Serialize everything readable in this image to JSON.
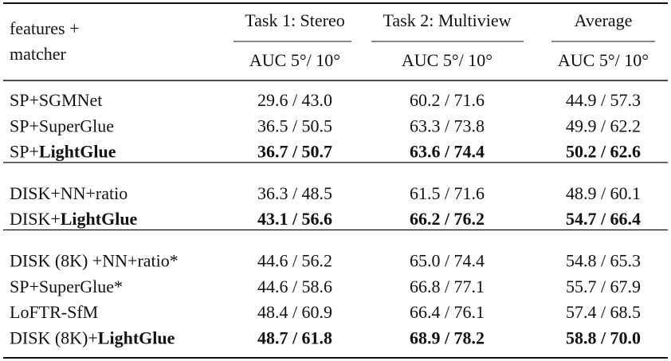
{
  "table": {
    "header": {
      "features": "features +",
      "matcher": "matcher",
      "groups": [
        "Task 1: Stereo",
        "Task 2: Multiview",
        "Average"
      ],
      "metrics": [
        "AUC 5°/ 10°",
        "AUC 5°/ 10°",
        "AUC 5°/ 10°"
      ]
    },
    "sections": [
      [
        {
          "method": [
            "SP+SGMNet"
          ],
          "cells": [
            "29.6 / 43.0",
            "60.2 / 71.6",
            "44.9 / 57.3"
          ]
        },
        {
          "method": [
            "SP+SuperGlue"
          ],
          "cells": [
            "36.5 / 50.5",
            "63.3 / 73.8",
            "49.9 / 62.2"
          ]
        },
        {
          "method": [
            "SP+",
            "LightGlue"
          ],
          "bold": true,
          "cells": [
            "36.7 / 50.7",
            "63.6 / 74.4",
            "50.2 / 62.6"
          ]
        }
      ],
      [
        {
          "method": [
            "DISK+NN+ratio"
          ],
          "cells": [
            "36.3 / 48.5",
            "61.5 / 71.6",
            "48.9 / 60.1"
          ]
        },
        {
          "method": [
            "DISK+",
            "LightGlue"
          ],
          "bold": true,
          "cells": [
            "43.1 / 56.6",
            "66.2 / 76.2",
            "54.7 / 66.4"
          ]
        }
      ],
      [
        {
          "method": [
            "DISK (8K) +NN+ratio*"
          ],
          "cells": [
            "44.6 / 56.2",
            "65.0 / 74.4",
            "54.8 / 65.3"
          ]
        },
        {
          "method": [
            "SP+SuperGlue*"
          ],
          "cells": [
            "44.6 / 58.6",
            "66.8 / 77.1",
            "55.7 / 67.9"
          ]
        },
        {
          "method": [
            "LoFTR-SfM"
          ],
          "cells": [
            "48.4 / 60.9",
            "66.4 / 76.1",
            "57.4 / 68.5"
          ]
        },
        {
          "method": [
            "DISK (8K)+",
            "LightGlue"
          ],
          "bold": true,
          "cells": [
            "48.7 / 61.8",
            "68.9 / 78.2",
            "58.8 / 70.0"
          ]
        }
      ]
    ]
  }
}
